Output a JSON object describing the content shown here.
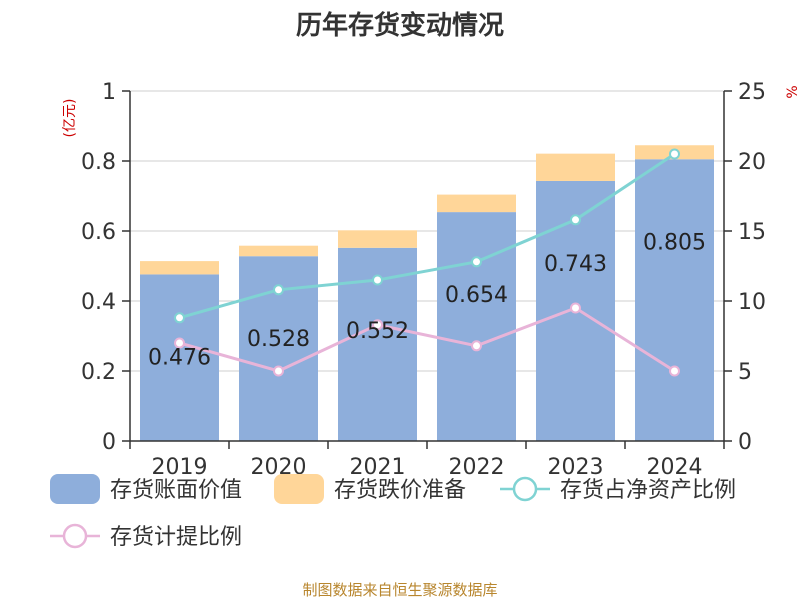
{
  "chart_data": {
    "type": "bar",
    "title": "历年存货变动情况",
    "categories": [
      "2019",
      "2020",
      "2021",
      "2022",
      "2023",
      "2024"
    ],
    "left_axis": {
      "unit": "(亿元)",
      "ylim": [
        0,
        1
      ],
      "ticks": [
        "0",
        "0.2",
        "0.4",
        "0.6",
        "0.8",
        "1"
      ],
      "tick_values": [
        0,
        0.2,
        0.4,
        0.6,
        0.8,
        1
      ]
    },
    "right_axis": {
      "unit": "%",
      "ylim": [
        0,
        25
      ],
      "ticks": [
        "0",
        "5",
        "10",
        "15",
        "20",
        "25"
      ],
      "tick_values": [
        0,
        5,
        10,
        15,
        20,
        25
      ]
    },
    "series": [
      {
        "name": "存货账面价值",
        "kind": "bar",
        "stack": "s",
        "axis": "left",
        "color": "#8eaedb",
        "values": [
          0.476,
          0.528,
          0.552,
          0.654,
          0.743,
          0.805
        ],
        "labels": [
          "0.476",
          "0.528",
          "0.552",
          "0.654",
          "0.743",
          "0.805"
        ]
      },
      {
        "name": "存货跌价准备",
        "kind": "bar",
        "stack": "s",
        "axis": "left",
        "color": "#ffd699",
        "values": [
          0.038,
          0.03,
          0.05,
          0.05,
          0.078,
          0.04
        ]
      },
      {
        "name": "存货占净资产比例",
        "kind": "line",
        "axis": "right",
        "color": "#7fd3d3",
        "values": [
          8.8,
          10.8,
          11.5,
          12.8,
          15.8,
          20.5
        ]
      },
      {
        "name": "存货计提比例",
        "kind": "line",
        "axis": "right",
        "color": "#e8b4d8",
        "values": [
          7.0,
          5.0,
          8.3,
          6.8,
          9.5,
          5.0
        ]
      }
    ],
    "grid": true,
    "legend_position": "bottom"
  },
  "source": "制图数据来自恒生聚源数据库"
}
